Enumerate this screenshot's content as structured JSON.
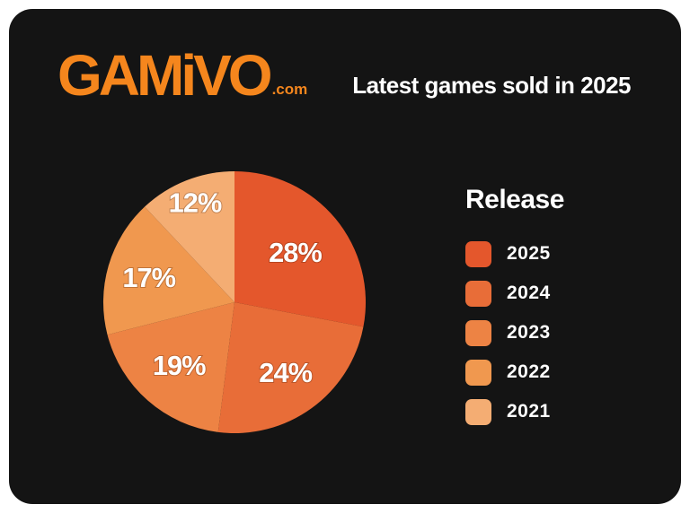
{
  "header": {
    "logo_text": "GAMiVO",
    "logo_suffix": ".com",
    "title": "Latest games sold in 2025"
  },
  "legend": {
    "title": "Release"
  },
  "chart_data": {
    "type": "pie",
    "title": "Latest games sold in 2025",
    "categories": [
      "2025",
      "2024",
      "2023",
      "2022",
      "2021"
    ],
    "values": [
      28,
      24,
      19,
      17,
      12
    ],
    "labels": [
      "28%",
      "24%",
      "19%",
      "17%",
      "12%"
    ],
    "colors": [
      "#e4572c",
      "#e86d38",
      "#ed8344",
      "#f0984f",
      "#f4ad73"
    ],
    "legend_title": "Release",
    "legend_position": "right",
    "start_angle_deg": 0,
    "direction": "clockwise"
  },
  "colors": {
    "card_background": "#141414",
    "page_background": "#ffffff",
    "logo_orange": "#f5861d",
    "text": "#ffffff"
  }
}
